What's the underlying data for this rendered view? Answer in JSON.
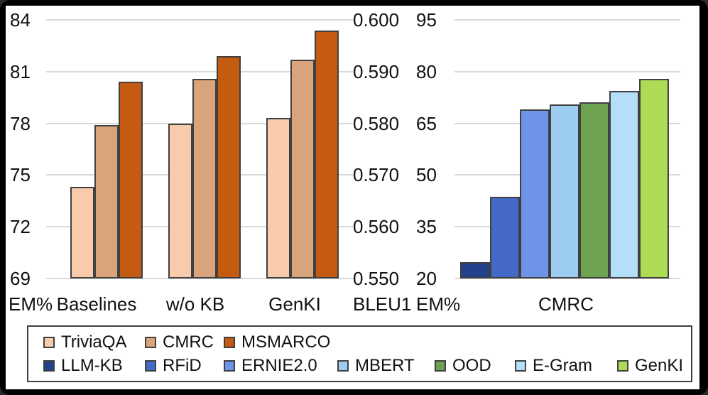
{
  "page": {
    "background": "#000000",
    "panel_background": "#ffffff",
    "text_color": "#111111",
    "grid_color": "#d9d9d9",
    "bar_border_color": "#404040"
  },
  "chart_data": [
    {
      "type": "bar",
      "axis_unit": "EM%",
      "ylabel": "EM%",
      "ylim": [
        69,
        84
      ],
      "ytick_step": 3,
      "yticks": [
        "84",
        "81",
        "78",
        "75",
        "72",
        "69"
      ],
      "grid": true,
      "legend_position": "bottom-shared",
      "categories": [
        "Baselines",
        "w/o KB",
        "GenKI"
      ],
      "series": [
        {
          "name": "TriviaQA",
          "color": "#F8CBAD",
          "values": [
            74.3,
            78.0,
            78.3
          ]
        },
        {
          "name": "CMRC",
          "color": "#D9A47B",
          "values": [
            77.9,
            80.6,
            81.7
          ]
        },
        {
          "name": "MSMARCO",
          "color": "#C55A11",
          "values": [
            80.4,
            81.9,
            83.4
          ]
        }
      ]
    },
    {
      "type": "bar",
      "axis_units": [
        "BLEU1",
        "EM%"
      ],
      "y1label": "BLEU1",
      "y1lim": [
        0.55,
        0.6
      ],
      "y1ticks": [
        "0.600",
        "0.590",
        "0.580",
        "0.570",
        "0.560",
        "0.550"
      ],
      "y2label": "EM%",
      "y2lim": [
        20,
        95
      ],
      "y2ticks": [
        "95",
        "80",
        "65",
        "50",
        "35",
        "20"
      ],
      "grid": true,
      "legend_position": "bottom-shared",
      "categories": [
        "CMRC"
      ],
      "value_axis": "EM%",
      "series": [
        {
          "name": "LLM-KB",
          "color": "#24418C",
          "values": [
            24.7
          ]
        },
        {
          "name": "RFiD",
          "color": "#4569C6",
          "values": [
            43.7
          ]
        },
        {
          "name": "ERNIE2.0",
          "color": "#6D94E8",
          "values": [
            69.0
          ]
        },
        {
          "name": "MBERT",
          "color": "#9CCDF0",
          "values": [
            70.5
          ]
        },
        {
          "name": "OOD",
          "color": "#6DA251",
          "values": [
            71.0
          ]
        },
        {
          "name": "E-Gram",
          "color": "#B5DEF8",
          "values": [
            74.3
          ]
        },
        {
          "name": "GenKI",
          "color": "#AEDB55",
          "values": [
            78.0
          ]
        }
      ]
    }
  ]
}
